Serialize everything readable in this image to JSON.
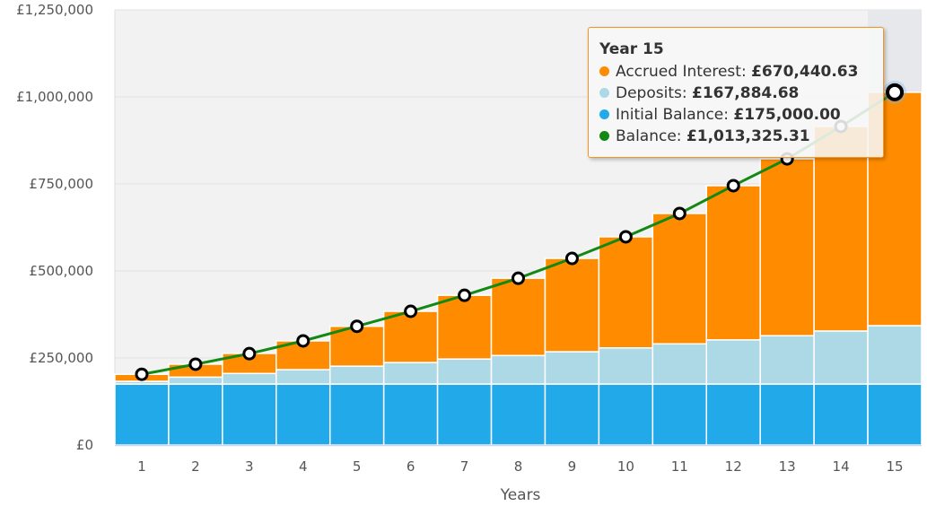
{
  "chart_data": {
    "type": "bar",
    "stacked": true,
    "categories": [
      "1",
      "2",
      "3",
      "4",
      "5",
      "6",
      "7",
      "8",
      "9",
      "10",
      "11",
      "12",
      "13",
      "14",
      "15"
    ],
    "xlabel": "Years",
    "ylabel": "",
    "ylim": [
      0,
      1250000
    ],
    "yticks": [
      0,
      250000,
      500000,
      750000,
      1000000,
      1250000
    ],
    "ytick_labels": [
      "£0",
      "£250,000",
      "£500,000",
      "£750,000",
      "£1,000,000",
      "£1,250,000"
    ],
    "grid": true,
    "series": [
      {
        "name": "Initial Balance",
        "type": "bar",
        "color": "#21a9e9",
        "values": [
          175000,
          175000,
          175000,
          175000,
          175000,
          175000,
          175000,
          175000,
          175000,
          175000,
          175000,
          175000,
          175000,
          175000,
          175000
        ]
      },
      {
        "name": "Deposits",
        "type": "bar",
        "color": "#add8e6",
        "values": [
          8000,
          20000,
          30500,
          41500,
          51500,
          62000,
          72000,
          82000,
          93000,
          104000,
          115500,
          127000,
          139000,
          152500,
          167884.68
        ]
      },
      {
        "name": "Accrued Interest",
        "type": "bar",
        "color": "#ff8c00",
        "values": [
          20000,
          37000,
          57500,
          82500,
          114500,
          147000,
          183000,
          222000,
          268000,
          319000,
          374500,
          443000,
          508000,
          587500,
          670440.63
        ]
      },
      {
        "name": "Balance",
        "type": "line",
        "color": "#138813",
        "values": [
          203000,
          232000,
          262500,
          299000,
          341000,
          384000,
          430000,
          479000,
          536000,
          598000,
          665000,
          745000,
          822000,
          915000,
          1013325.31
        ]
      }
    ],
    "highlighted_category": "15"
  },
  "tooltip": {
    "title": "Year 15",
    "rows": [
      {
        "label": "Accrued Interest: ",
        "value": "£670,440.63",
        "color": "#ff8c00"
      },
      {
        "label": "Deposits: ",
        "value": "£167,884.68",
        "color": "#add8e6"
      },
      {
        "label": "Initial Balance: ",
        "value": "£175,000.00",
        "color": "#21a9e9"
      },
      {
        "label": "Balance: ",
        "value": "£1,013,325.31",
        "color": "#138813"
      }
    ]
  }
}
